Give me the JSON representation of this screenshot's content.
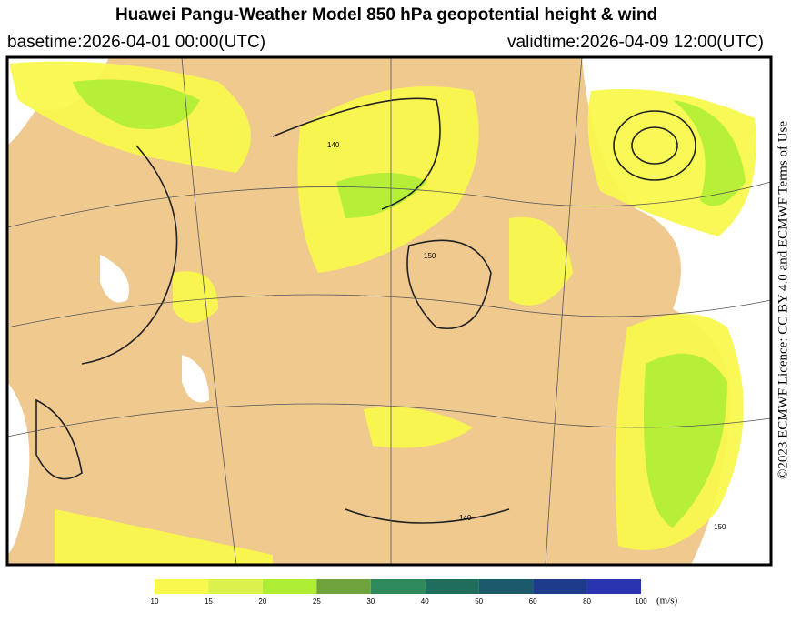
{
  "header": {
    "title": "Huawei Pangu-Weather Model 850 hPa geopotential height & wind",
    "basetime": "basetime:2026-04-01 00:00(UTC)",
    "validtime": "validtime:2026-04-09 12:00(UTC)"
  },
  "license": "©2023 ECMWF Licence: CC BY 4.0 and ECMWF Terms of Use",
  "map": {
    "contour_labels": [
      "150",
      "140",
      "140",
      "150"
    ]
  },
  "colorbar": {
    "ticks": [
      10,
      15,
      20,
      25,
      30,
      40,
      50,
      60,
      80,
      100
    ],
    "colors": [
      "#f8f84d",
      "#dcf24c",
      "#aeee34",
      "#6fa33c",
      "#2e8a5a",
      "#1f6e5c",
      "#1a5a6c",
      "#1e3a8a",
      "#2a34b0"
    ],
    "unit": "(m/s)"
  }
}
